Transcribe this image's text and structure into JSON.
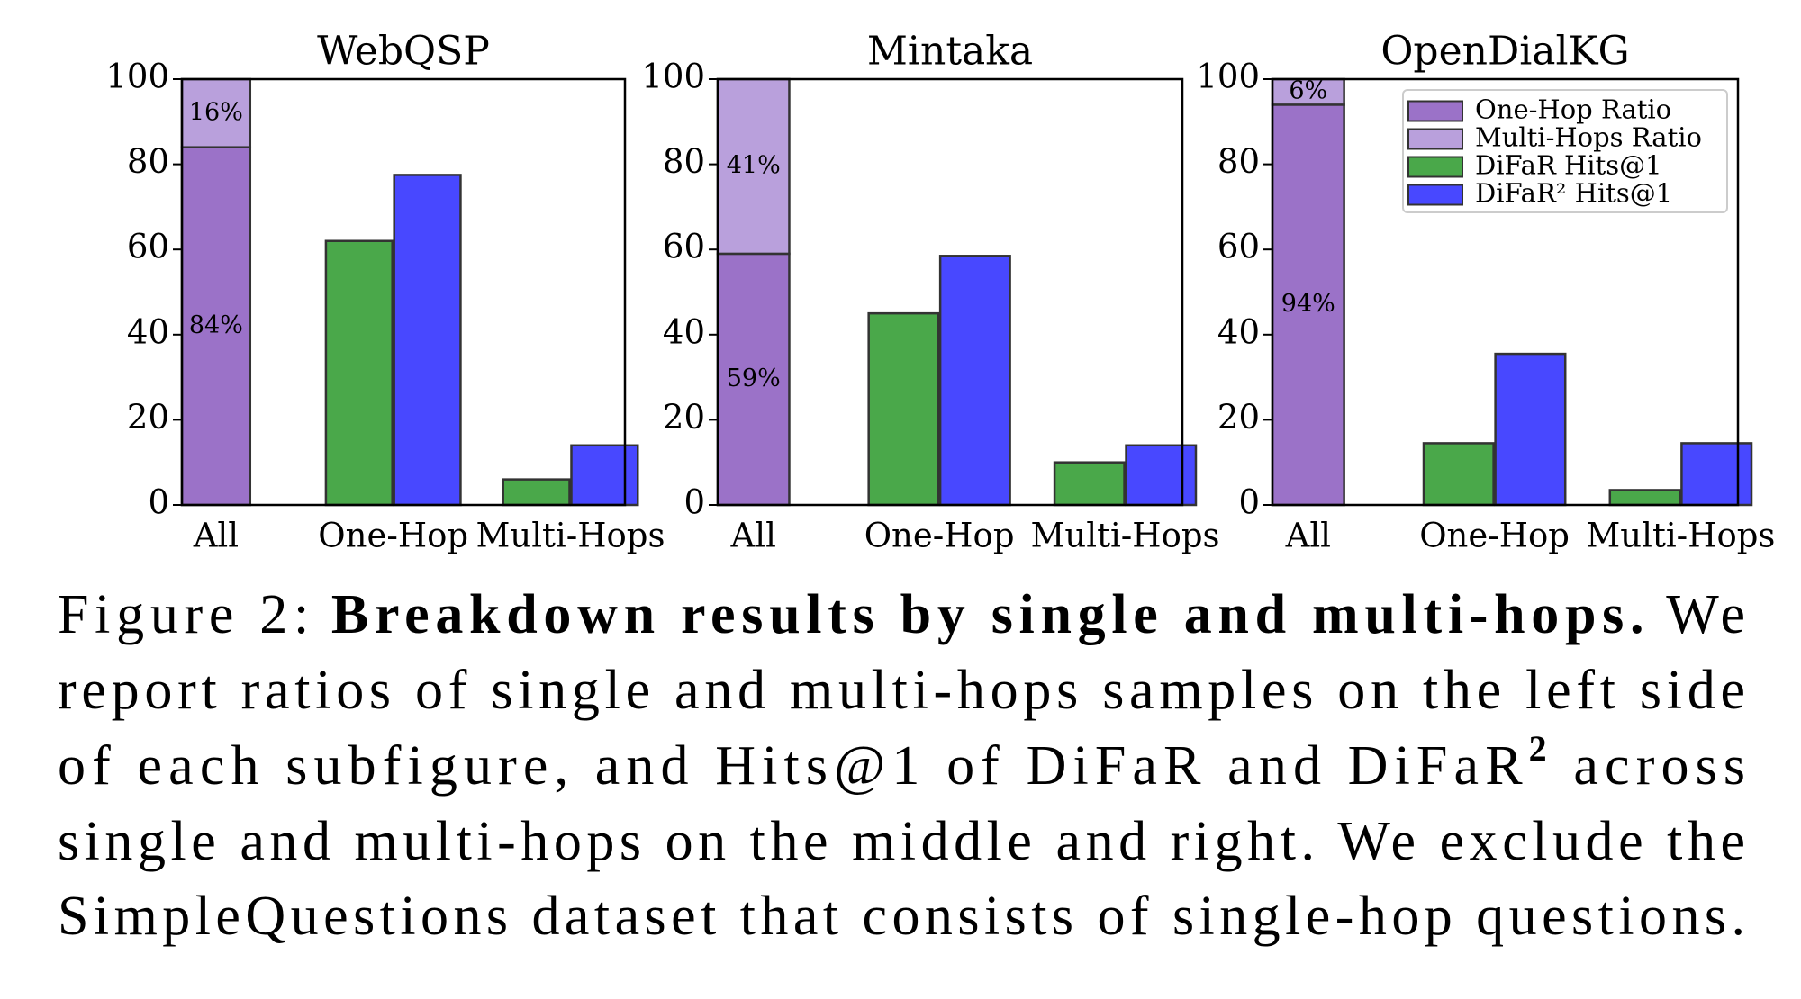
{
  "chart_data": [
    {
      "type": "bar",
      "title": "WebQSP",
      "categories": [
        "All",
        "One-Hop",
        "Multi-Hops"
      ],
      "ylim": [
        0,
        100
      ],
      "yticks": [
        0,
        20,
        40,
        60,
        80,
        100
      ],
      "series": [
        {
          "name": "One-Hop Ratio",
          "color": "#9b72c8",
          "stack": "ratio",
          "values": [
            84,
            null,
            null
          ],
          "value_labels": [
            "84%",
            null,
            null
          ]
        },
        {
          "name": "Multi-Hops Ratio",
          "color": "#b9a0dc",
          "stack": "ratio",
          "values": [
            16,
            null,
            null
          ],
          "value_labels": [
            "16%",
            null,
            null
          ]
        },
        {
          "name": "DiFaR Hits@1",
          "color": "#4aa84a",
          "values": [
            null,
            62,
            6
          ]
        },
        {
          "name": "DiFaR² Hits@1",
          "color": "#4848ff",
          "values": [
            null,
            77.5,
            14
          ]
        }
      ]
    },
    {
      "type": "bar",
      "title": "Mintaka",
      "categories": [
        "All",
        "One-Hop",
        "Multi-Hops"
      ],
      "ylim": [
        0,
        100
      ],
      "yticks": [
        0,
        20,
        40,
        60,
        80,
        100
      ],
      "series": [
        {
          "name": "One-Hop Ratio",
          "color": "#9b72c8",
          "stack": "ratio",
          "values": [
            59,
            null,
            null
          ],
          "value_labels": [
            "59%",
            null,
            null
          ]
        },
        {
          "name": "Multi-Hops Ratio",
          "color": "#b9a0dc",
          "stack": "ratio",
          "values": [
            41,
            null,
            null
          ],
          "value_labels": [
            "41%",
            null,
            null
          ]
        },
        {
          "name": "DiFaR Hits@1",
          "color": "#4aa84a",
          "values": [
            null,
            45,
            10
          ]
        },
        {
          "name": "DiFaR² Hits@1",
          "color": "#4848ff",
          "values": [
            null,
            58.5,
            14
          ]
        }
      ]
    },
    {
      "type": "bar",
      "title": "OpenDialKG",
      "categories": [
        "All",
        "One-Hop",
        "Multi-Hops"
      ],
      "ylim": [
        0,
        100
      ],
      "yticks": [
        0,
        20,
        40,
        60,
        80,
        100
      ],
      "legend": "upper right",
      "series": [
        {
          "name": "One-Hop Ratio",
          "color": "#9b72c8",
          "stack": "ratio",
          "values": [
            94,
            null,
            null
          ],
          "value_labels": [
            "94%",
            null,
            null
          ]
        },
        {
          "name": "Multi-Hops Ratio",
          "color": "#b9a0dc",
          "stack": "ratio",
          "values": [
            6,
            null,
            null
          ],
          "value_labels": [
            "6%",
            null,
            null
          ]
        },
        {
          "name": "DiFaR Hits@1",
          "color": "#4aa84a",
          "values": [
            null,
            14.5,
            3.5
          ]
        },
        {
          "name": "DiFaR² Hits@1",
          "color": "#4848ff",
          "values": [
            null,
            35.5,
            14.5
          ]
        }
      ]
    }
  ],
  "caption": {
    "label": "Figure 2:",
    "title": "Breakdown results by single and multi-hops.",
    "lead": "We",
    "lines": [
      "report ratios of single and multi-hops samples on the left side",
      {
        "text": "of each subfigure, and Hits@1 of DiFaR and DiFaR",
        "sup": "2",
        "tail": " across"
      },
      "single and multi-hops on the middle and right. We exclude the",
      "SimpleQuestions dataset that consists of single-hop questions."
    ]
  }
}
